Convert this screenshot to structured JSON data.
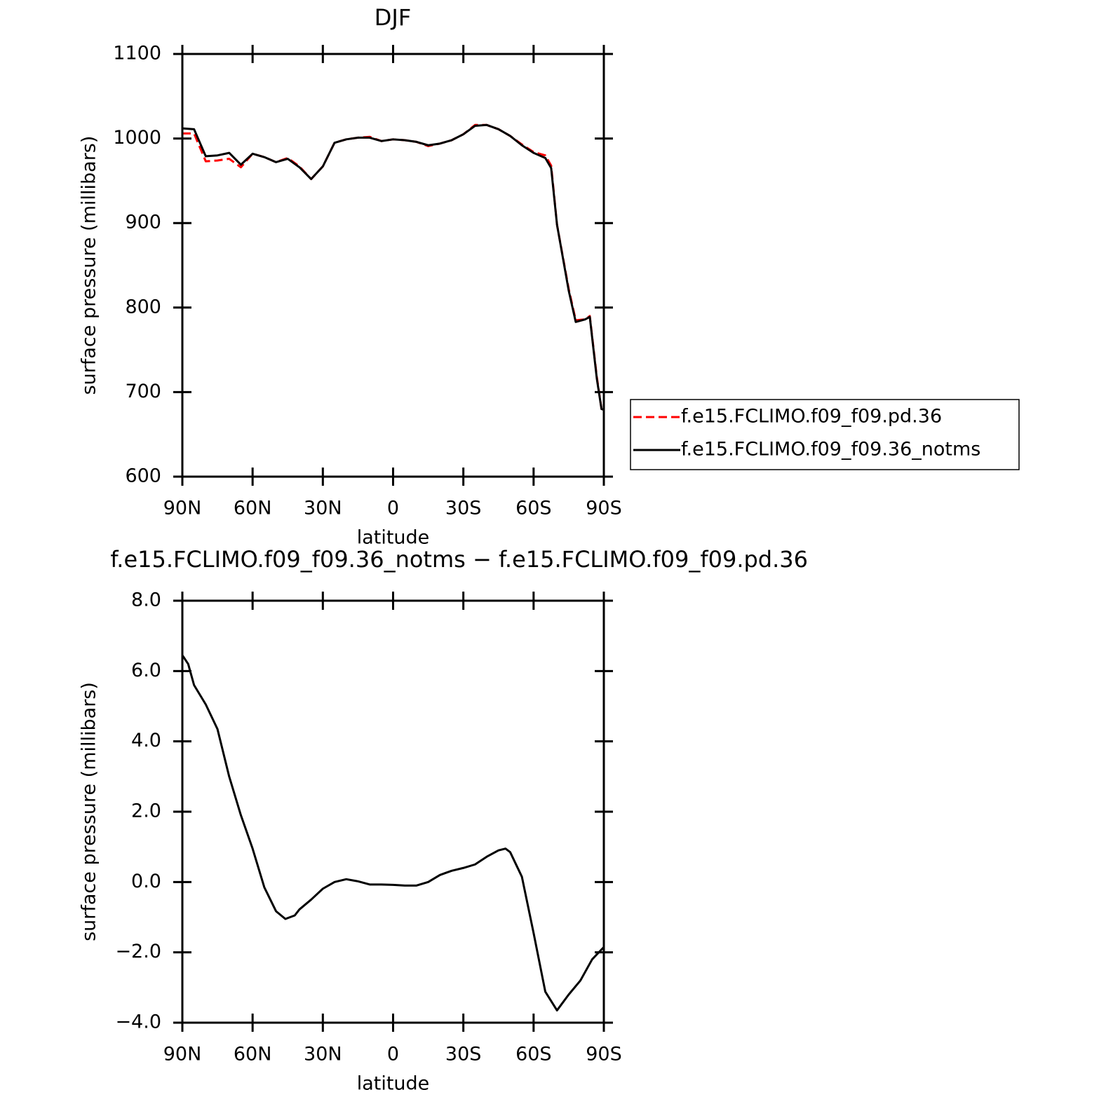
{
  "chart_data": [
    {
      "type": "line",
      "title": "DJF",
      "xlabel": "latitude",
      "ylabel": "surface pressure (millibars)",
      "x": [
        90,
        85,
        80,
        75,
        70,
        65,
        60,
        55,
        50,
        45,
        40,
        35,
        30,
        25,
        20,
        15,
        10,
        5,
        0,
        -5,
        -10,
        -15,
        -20,
        -25,
        -30,
        -35,
        -40,
        -45,
        -50,
        -55,
        -60,
        -65,
        -67.5,
        -70,
        -75,
        -78,
        -82,
        -84,
        -87,
        -89,
        -90
      ],
      "series": [
        {
          "name": "f.e15.FCLIMO.f09_f09.pd.36",
          "color": "#ff0000",
          "style": "dashed",
          "values": [
            1006,
            1006,
            973,
            974,
            976,
            966,
            982,
            978,
            972,
            977,
            967,
            952,
            967,
            995,
            999,
            1001,
            1002,
            997,
            999,
            998,
            996,
            991,
            994,
            998,
            1005,
            1016,
            1016,
            1011,
            1003,
            993,
            984,
            980,
            968,
            898,
            822,
            785,
            786,
            790,
            718,
            680,
            679
          ]
        },
        {
          "name": "f.e15.FCLIMO.f09_f09.36_notms",
          "color": "#000000",
          "style": "solid",
          "values": [
            1012,
            1011,
            979,
            980,
            983,
            969,
            982,
            978,
            972,
            976,
            966,
            952,
            967,
            995,
            999,
            1001,
            1001,
            997,
            999,
            998,
            996,
            992,
            994,
            998,
            1005,
            1015,
            1016,
            1011,
            1003,
            992,
            983,
            977,
            965,
            898,
            820,
            783,
            786,
            789,
            716,
            680,
            679
          ]
        }
      ],
      "xlim": [
        90,
        -90
      ],
      "xticks": [
        {
          "value": 90,
          "label": "90N"
        },
        {
          "value": 60,
          "label": "60N"
        },
        {
          "value": 30,
          "label": "30N"
        },
        0,
        {
          "value": -30,
          "label": "30S"
        },
        {
          "value": -60,
          "label": "60S"
        },
        {
          "value": -90,
          "label": "90S"
        }
      ],
      "ylim": [
        600,
        1100
      ],
      "yticks": [
        600,
        700,
        800,
        900,
        1000,
        1100
      ],
      "legend": "right"
    },
    {
      "type": "line",
      "title": "f.e15.FCLIMO.f09_f09.36_notms − f.e15.FCLIMO.f09_f09.pd.36",
      "xlabel": "latitude",
      "ylabel": "surface pressure (millibars)",
      "x": [
        90,
        87.5,
        85,
        80,
        75,
        70,
        65,
        60,
        55,
        50,
        46,
        42,
        40,
        35,
        30,
        25,
        20,
        15,
        10,
        5,
        0,
        -5,
        -10,
        -15,
        -20,
        -25,
        -30,
        -35,
        -40,
        -45,
        -48,
        -50,
        -55,
        -60,
        -65,
        -70,
        -75,
        -80,
        -85,
        -90
      ],
      "values": [
        6.45,
        6.2,
        5.6,
        5.05,
        4.35,
        3.0,
        1.9,
        0.95,
        -0.15,
        -0.83,
        -1.05,
        -0.95,
        -0.78,
        -0.5,
        -0.19,
        0.0,
        0.08,
        0.02,
        -0.07,
        -0.07,
        -0.08,
        -0.1,
        -0.1,
        0.0,
        0.2,
        0.32,
        0.4,
        0.5,
        0.72,
        0.9,
        0.95,
        0.85,
        0.15,
        -1.45,
        -3.12,
        -3.65,
        -3.2,
        -2.8,
        -2.2,
        -1.85
      ],
      "color": "#000000",
      "xlim": [
        90,
        -90
      ],
      "xticks": [
        {
          "value": 90,
          "label": "90N"
        },
        {
          "value": 60,
          "label": "60N"
        },
        {
          "value": 30,
          "label": "30N"
        },
        0,
        {
          "value": -30,
          "label": "30S"
        },
        {
          "value": -60,
          "label": "60S"
        },
        {
          "value": -90,
          "label": "90S"
        }
      ],
      "ylim": [
        -4,
        8
      ],
      "yticks": [
        {
          "value": -4,
          "label": "−4.0"
        },
        {
          "value": -2,
          "label": "−2.0"
        },
        {
          "value": 0,
          "label": "0.0"
        },
        {
          "value": 2,
          "label": "2.0"
        },
        {
          "value": 4,
          "label": "4.0"
        },
        {
          "value": 6,
          "label": "6.0"
        },
        {
          "value": 8,
          "label": "8.0"
        }
      ]
    }
  ]
}
